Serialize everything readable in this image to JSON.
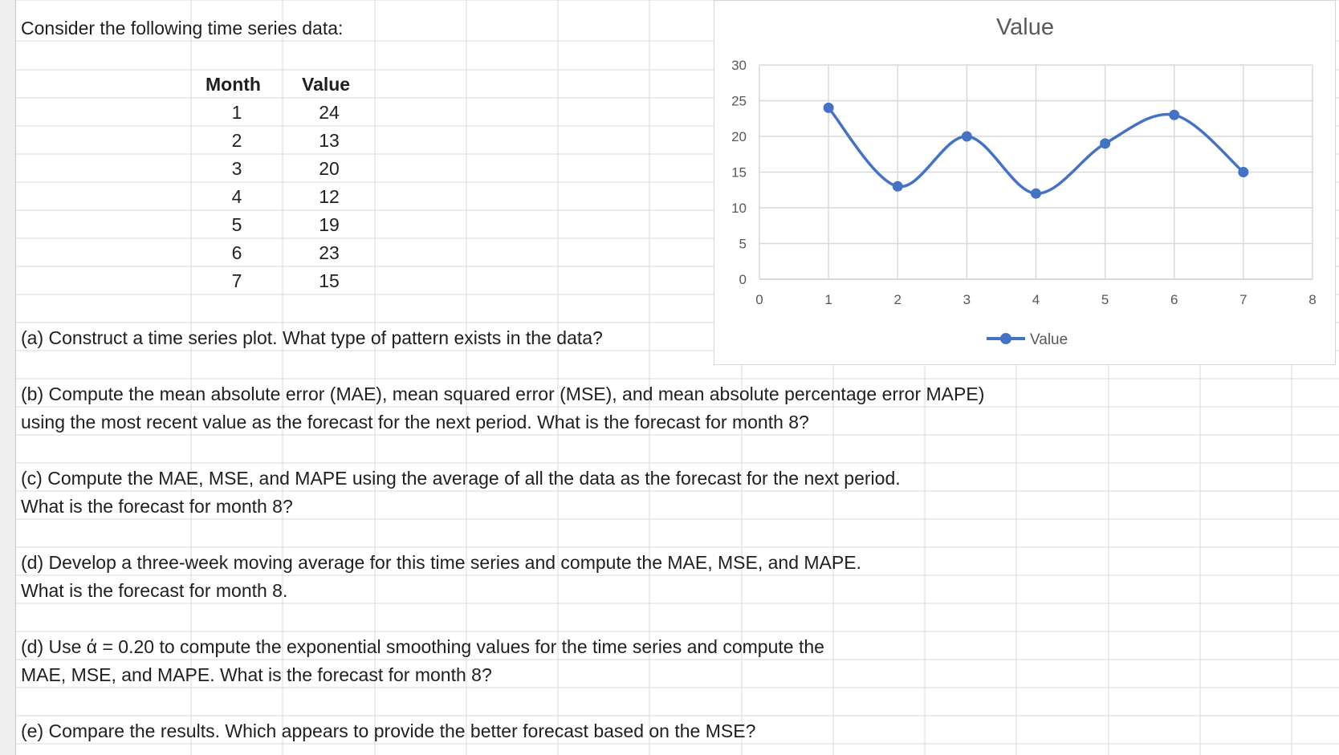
{
  "worksheet": {
    "intro_text": "Consider the following time series data:",
    "table": {
      "headers": [
        "Month",
        "Value"
      ],
      "rows": [
        [
          "1",
          "24"
        ],
        [
          "2",
          "13"
        ],
        [
          "3",
          "20"
        ],
        [
          "4",
          "12"
        ],
        [
          "5",
          "19"
        ],
        [
          "6",
          "23"
        ],
        [
          "7",
          "15"
        ]
      ]
    },
    "questions": {
      "a": "(a) Construct a time series plot. What type of pattern exists in the data?",
      "b_line1": "(b) Compute the mean absolute error (MAE), mean squared error (MSE), and mean absolute percentage error MAPE)",
      "b_line2": "using the most recent value as the forecast for the next period. What is the forecast for month 8?",
      "c_line1": "(c) Compute the MAE, MSE, and MAPE using the average of all the data as the forecast for the next period.",
      "c_line2": "What is the forecast for month 8?",
      "d_line1": "(d) Develop a three-week moving average for this time series and compute the MAE, MSE, and MAPE.",
      "d_line2": "What is the forecast for month 8.",
      "d2_line1": "(d) Use ά = 0.20 to compute the exponential smoothing values for the time series and compute the",
      "d2_line2": "MAE, MSE, and MAPE. What is the forecast for month 8?",
      "e": "(e) Compare the results. Which appears to provide the better forecast based on the MSE?"
    }
  },
  "chart_data": {
    "type": "line",
    "title": "Value",
    "x": [
      1,
      2,
      3,
      4,
      5,
      6,
      7
    ],
    "series": [
      {
        "name": "Value",
        "values": [
          24,
          13,
          20,
          12,
          19,
          23,
          15
        ]
      }
    ],
    "xlim": [
      0,
      8
    ],
    "ylim": [
      0,
      30
    ],
    "xticks": [
      "0",
      "1",
      "2",
      "3",
      "4",
      "5",
      "6",
      "7",
      "8"
    ],
    "yticks": [
      "0",
      "5",
      "10",
      "15",
      "20",
      "25",
      "30"
    ],
    "grid": true,
    "smooth": true,
    "legend": "bottom",
    "colors": {
      "series": "#4472C4",
      "grid": "#d9d9d9",
      "axis_text": "#595959"
    }
  }
}
